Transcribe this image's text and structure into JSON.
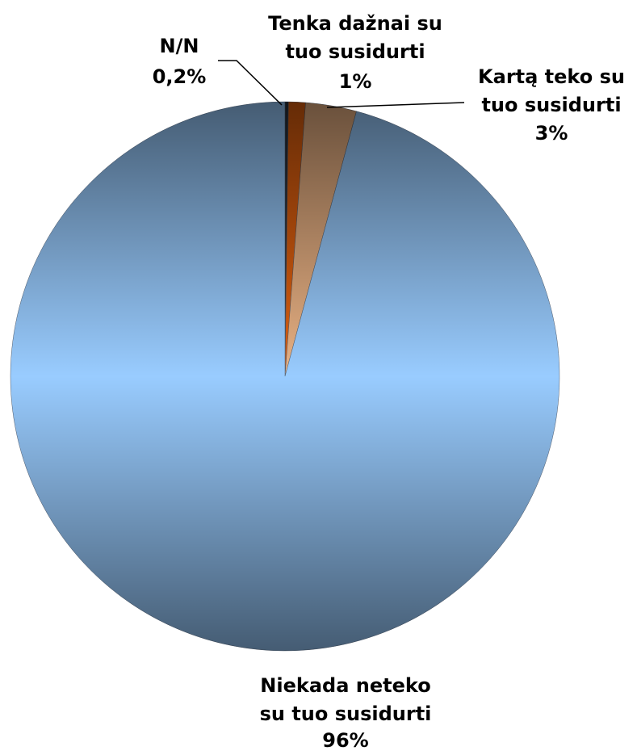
{
  "chart_data": {
    "type": "pie",
    "categories": [
      "N/N",
      "Tenka dažnai su tuo susidurti",
      "Kartą teko su tuo susidurti",
      "Niekada neteko su tuo susidurti"
    ],
    "values": [
      0.2,
      1,
      3,
      96
    ],
    "value_labels": [
      "0,2%",
      "1%",
      "3%",
      "96%"
    ],
    "colors": [
      "#2b3340",
      "#e0600f",
      "#eab284",
      "#99ccff"
    ]
  }
}
